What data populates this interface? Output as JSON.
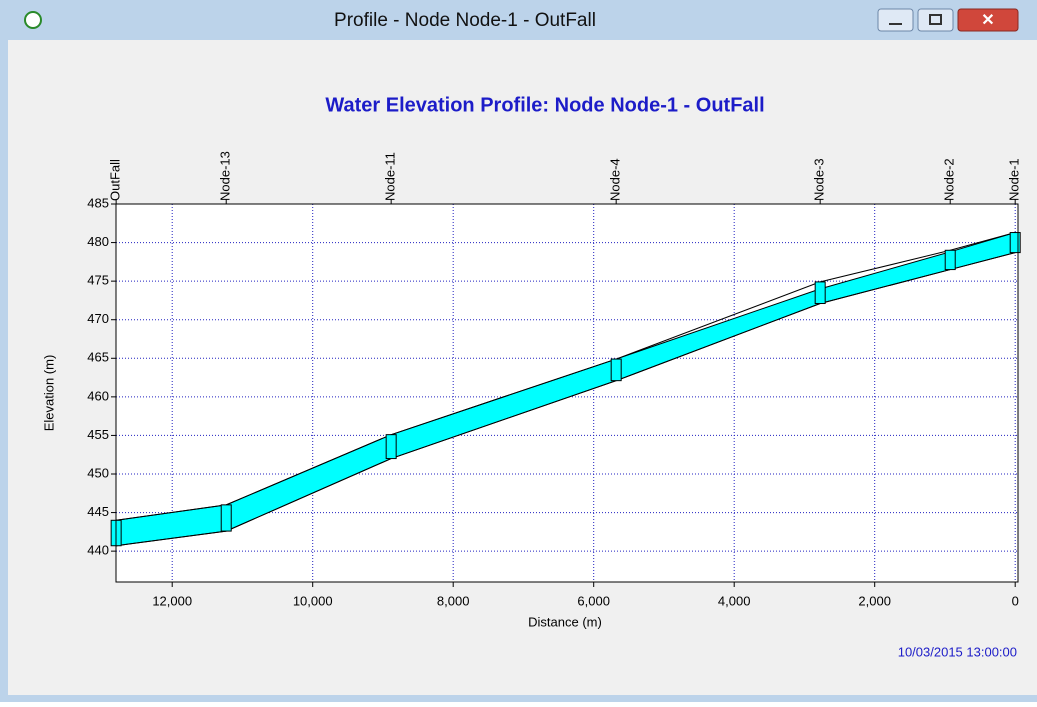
{
  "window": {
    "title": "Profile - Node Node-1 - OutFall"
  },
  "chart_data": {
    "type": "profile",
    "title": "Water Elevation Profile:  Node Node-1 - OutFall",
    "x_label": "Distance (m)",
    "y_label": "Elevation (m)",
    "timestamp": "10/03/2015 13:00:00",
    "node_labels": [
      "OutFall",
      "Node-13",
      "Node-11",
      "Node-4",
      "Node-3",
      "Node-2",
      "Node-1"
    ],
    "x": [
      12798,
      11231,
      8883,
      5680,
      2776,
      925,
      0
    ],
    "series": [
      {
        "color": "#000000",
        "values": [
          440.7,
          442.6,
          452.0,
          462.1,
          472.1,
          476.5,
          478.7
        ]
      },
      {
        "color": "#00ffff",
        "values": [
          444.0,
          446.0,
          455.1,
          464.9,
          474.0,
          478.8,
          481.3
        ]
      },
      {
        "color": "#000000",
        "values": [
          444.0,
          446.0,
          455.1,
          464.9,
          474.9,
          479.0,
          481.3
        ]
      }
    ],
    "xlim": [
      12800,
      -40
    ],
    "xticks": [
      {
        "value": 12000,
        "label": "12,000"
      },
      {
        "value": 10000,
        "label": "10,000"
      },
      {
        "value": 8000,
        "label": "8,000"
      },
      {
        "value": 6000,
        "label": "6,000"
      },
      {
        "value": 4000,
        "label": "4,000"
      },
      {
        "value": 2000,
        "label": "2,000"
      },
      0
    ],
    "ylim": [
      436,
      485
    ],
    "yticks": [
      440,
      445,
      450,
      455,
      460,
      465,
      470,
      475,
      480,
      485
    ],
    "grid": true
  }
}
